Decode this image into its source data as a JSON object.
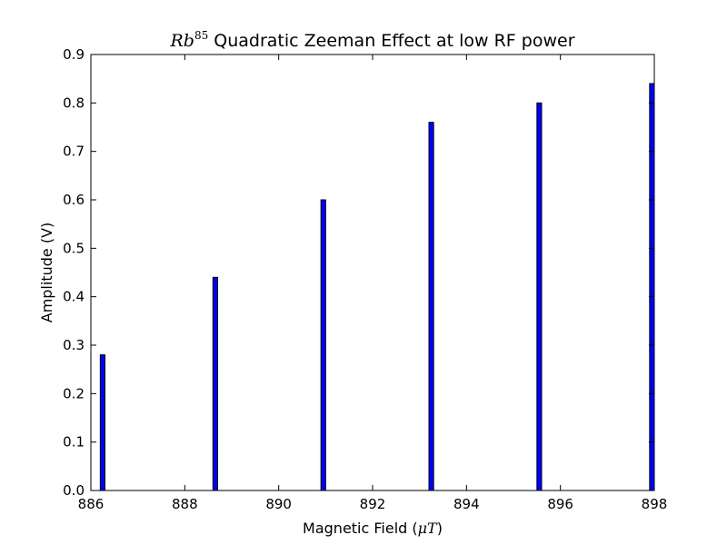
{
  "chart_data": {
    "type": "bar",
    "title": {
      "math": "Rb",
      "superscript": "85",
      "text": " Quadratic Zeeman Effect at low RF power"
    },
    "xlabel": {
      "prefix": "Magnetic Field (",
      "math": "μT",
      "suffix": ")"
    },
    "ylabel": "Amplitude (V)",
    "xlim": [
      886,
      898
    ],
    "ylim": [
      0,
      0.9
    ],
    "x_ticks": [
      "886",
      "888",
      "890",
      "892",
      "894",
      "896",
      "898"
    ],
    "y_ticks": [
      "0.0",
      "0.1",
      "0.2",
      "0.3",
      "0.4",
      "0.5",
      "0.6",
      "0.7",
      "0.8",
      "0.9"
    ],
    "x": [
      886.2,
      888.6,
      890.9,
      893.2,
      895.5,
      897.9
    ],
    "values": [
      0.28,
      0.44,
      0.6,
      0.76,
      0.8,
      0.84
    ],
    "bar_width": 0.1,
    "bar_color": "#0000ff",
    "grid": false,
    "legend": "none"
  }
}
